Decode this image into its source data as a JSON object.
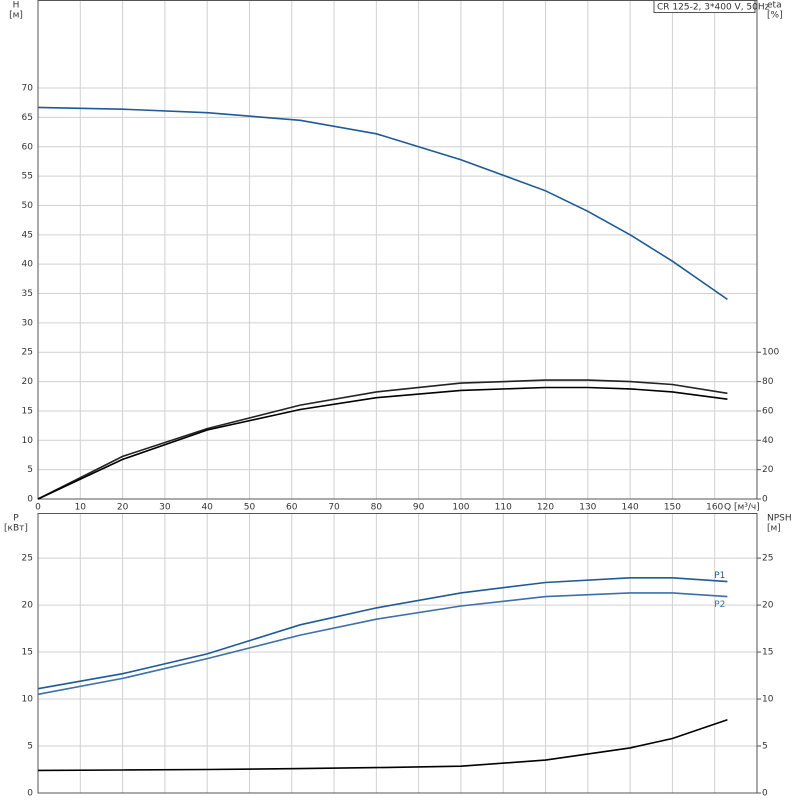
{
  "chart_data": [
    {
      "type": "line",
      "title": "CR 125-2, 3*400 V, 50Hz",
      "ylabel": "H",
      "yunit": "[м]",
      "y2label": "eta",
      "y2unit": "[%]",
      "xlabel": "Q [м³/ч]",
      "xlim": [
        0,
        170
      ],
      "xticks": [
        0,
        10,
        20,
        30,
        40,
        50,
        60,
        70,
        80,
        90,
        100,
        110,
        120,
        130,
        140,
        150,
        160
      ],
      "ylim": [
        0,
        85
      ],
      "yticks": [
        0,
        5,
        10,
        15,
        20,
        25,
        30,
        35,
        40,
        45,
        50,
        55,
        60,
        65,
        70
      ],
      "y2lim": [
        0,
        340
      ],
      "y2ticks": [
        0,
        20,
        40,
        60,
        80,
        100
      ],
      "grid": true,
      "x": [
        0,
        20,
        40,
        62,
        80,
        100,
        120,
        130,
        140,
        150,
        163
      ],
      "series": [
        {
          "color": "#1f5a96",
          "values": [
            66.7,
            66.4,
            65.8,
            64.5,
            62.2,
            57.8,
            52.5,
            49.0,
            45.0,
            40.5,
            34.0
          ]
        },
        {
          "color": "#222222",
          "axis": "y2",
          "values": [
            0,
            29,
            48,
            64,
            73,
            79,
            81,
            81,
            80,
            78,
            72
          ]
        },
        {
          "color": "#000000",
          "axis": "y2",
          "values": [
            0,
            27,
            47,
            61,
            69,
            74,
            76,
            76,
            75,
            73,
            68
          ]
        }
      ]
    },
    {
      "type": "line",
      "ylabel": "P",
      "yunit": "[кВт]",
      "y2label": "NPSH",
      "y2unit": "[м]",
      "xlim": [
        0,
        170
      ],
      "ylim": [
        0,
        29.8
      ],
      "yticks": [
        0,
        5,
        10,
        15,
        20,
        25
      ],
      "y2lim": [
        0,
        29.8
      ],
      "y2ticks": [
        0,
        5,
        10,
        15,
        20,
        25
      ],
      "grid": true,
      "x": [
        0,
        20,
        40,
        62,
        80,
        100,
        120,
        140,
        150,
        163
      ],
      "series": [
        {
          "name": "P1",
          "color": "#1f5a96",
          "values": [
            11.1,
            12.7,
            14.8,
            17.9,
            19.7,
            21.3,
            22.4,
            22.9,
            22.9,
            22.5
          ]
        },
        {
          "name": "P2",
          "color": "#3d6fa8",
          "values": [
            10.5,
            12.2,
            14.3,
            16.8,
            18.5,
            19.9,
            20.9,
            21.3,
            21.3,
            20.9
          ]
        },
        {
          "color": "#000000",
          "axis": "y2",
          "values": [
            2.4,
            2.45,
            2.5,
            2.6,
            2.7,
            2.85,
            3.5,
            4.8,
            5.8,
            7.8
          ]
        }
      ]
    }
  ]
}
